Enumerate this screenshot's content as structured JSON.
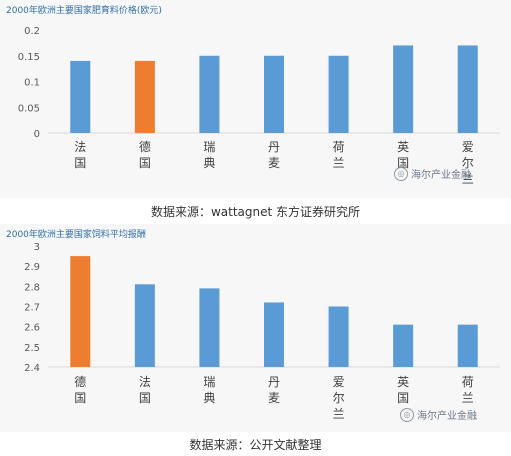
{
  "colors": {
    "bar": "#5b9bd5",
    "highlight": "#ed7d31",
    "axis": "#d9d9d9",
    "tick": "#595959",
    "title": "#2f6fad"
  },
  "chart_data": [
    {
      "type": "bar",
      "title": "2000年欧洲主要国家肥育料价格(欧元)",
      "categories": [
        "法国",
        "德国",
        "瑞典",
        "丹麦",
        "荷兰",
        "英国",
        "爱尔兰"
      ],
      "category_chars": [
        [
          "法",
          "国"
        ],
        [
          "德",
          "国"
        ],
        [
          "瑞",
          "典"
        ],
        [
          "丹",
          "麦"
        ],
        [
          "荷",
          "兰"
        ],
        [
          "英",
          "国"
        ],
        [
          "爱",
          "尔",
          "兰"
        ]
      ],
      "values": [
        0.14,
        0.14,
        0.15,
        0.15,
        0.15,
        0.17,
        0.17
      ],
      "highlight_index": 1,
      "ylim": [
        0,
        0.2
      ],
      "yticks": [
        "0",
        "0.05",
        "0.1",
        "0.15",
        "0.2"
      ],
      "ytick_values": [
        0,
        0.05,
        0.1,
        0.15,
        0.2
      ],
      "grid": false
    },
    {
      "type": "bar",
      "title": "2000年欧洲主要国家饲料平均报酬",
      "categories": [
        "德国",
        "法国",
        "瑞典",
        "丹麦",
        "爱尔兰",
        "英国",
        "荷兰"
      ],
      "category_chars": [
        [
          "德",
          "国"
        ],
        [
          "法",
          "国"
        ],
        [
          "瑞",
          "典"
        ],
        [
          "丹",
          "麦"
        ],
        [
          "爱",
          "尔",
          "兰"
        ],
        [
          "英",
          "国"
        ],
        [
          "荷",
          "兰"
        ]
      ],
      "values": [
        2.95,
        2.81,
        2.79,
        2.72,
        2.7,
        2.61,
        2.61
      ],
      "highlight_index": 0,
      "ylim": [
        2.4,
        3.0
      ],
      "yticks": [
        "2.4",
        "2.5",
        "2.6",
        "2.7",
        "2.8",
        "2.9",
        "3"
      ],
      "ytick_values": [
        2.4,
        2.5,
        2.6,
        2.7,
        2.8,
        2.9,
        3.0
      ],
      "grid": false
    }
  ],
  "captions": {
    "top": "数据来源：wattagnet 东方证券研究所",
    "bottom": "数据来源：公开文献整理"
  },
  "watermark": {
    "text": "海尔产业金融",
    "icon": "wechat-icon"
  }
}
